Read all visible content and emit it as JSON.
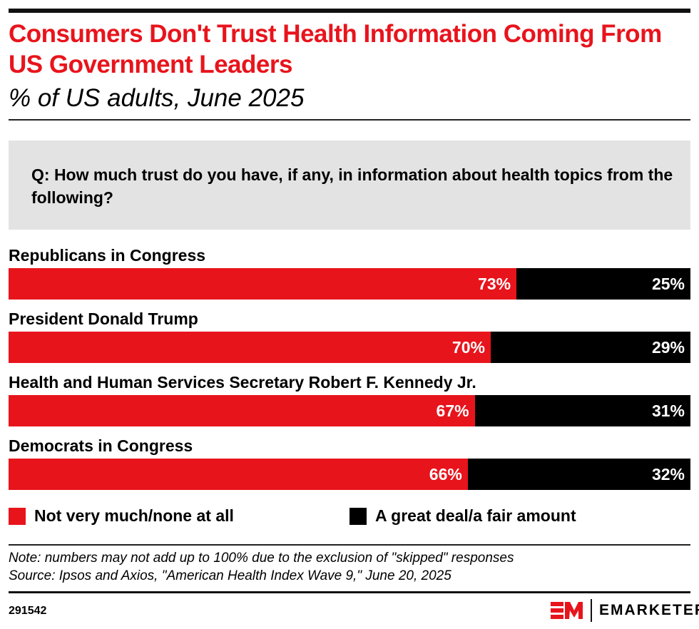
{
  "title": "Consumers Don't Trust Health Information Coming From US Government Leaders",
  "subtitle": "% of US adults, June 2025",
  "question": "Q: How much trust do you have, if any, in information about health topics from the following?",
  "colors": {
    "not_very_much": "#e8141c",
    "great_deal": "#000000"
  },
  "chart_data": {
    "type": "bar",
    "orientation": "horizontal",
    "stacked": true,
    "categories": [
      "Republicans in Congress",
      "President Donald Trump",
      "Health and Human Services Secretary Robert F. Kennedy Jr.",
      "Democrats in Congress"
    ],
    "series": [
      {
        "name": "Not very much/none at all",
        "values": [
          73,
          70,
          67,
          66
        ],
        "labels": [
          "73%",
          "70%",
          "67%",
          "66%"
        ]
      },
      {
        "name": "A great deal/a fair amount",
        "values": [
          25,
          29,
          31,
          32
        ],
        "labels": [
          "25%",
          "29%",
          "31%",
          "32%"
        ]
      }
    ],
    "legend": "bottom"
  },
  "note": "Note: numbers may not add up to 100% due to the exclusion of \"skipped\" responses",
  "source": "Source: Ipsos and Axios, \"American Health Index Wave 9,\" June 20, 2025",
  "chart_id": "291542",
  "brand": "EMARKETER"
}
